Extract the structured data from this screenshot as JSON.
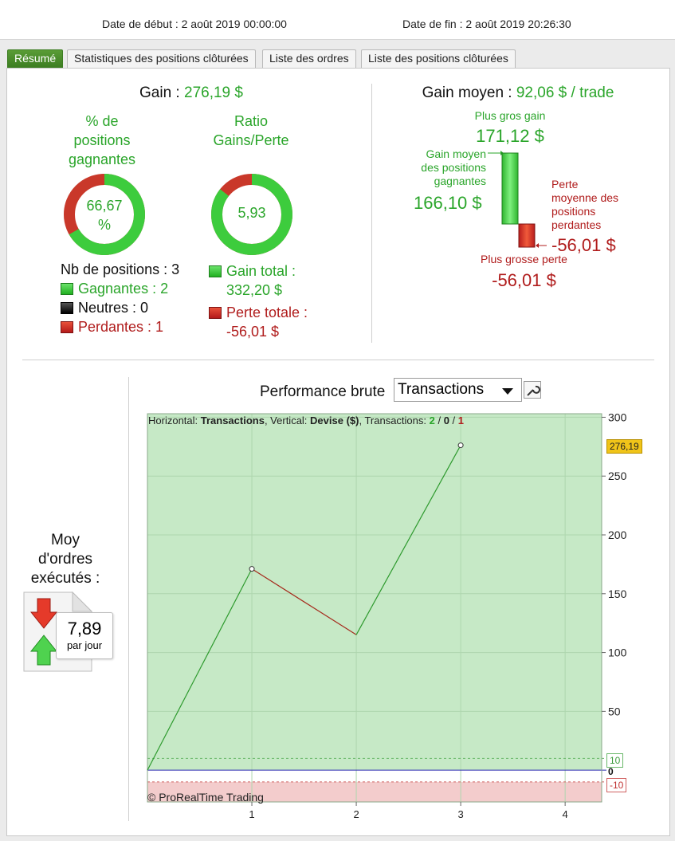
{
  "header": {
    "start_date": "Date de début : 2 août 2019 00:00:00",
    "end_date": "Date de fin : 2 août 2019 20:26:30"
  },
  "tabs": [
    {
      "label": "Résumé",
      "active": true
    },
    {
      "label": "Statistiques des positions clôturées"
    },
    {
      "label": "Liste des ordres"
    },
    {
      "label": "Liste des positions clôturées"
    }
  ],
  "summary": {
    "gain_label": "Gain :",
    "gain_value": "276,19 $",
    "pct_label_1": "% de",
    "pct_label_2": "positions",
    "pct_label_3": "gagnantes",
    "pct_value_1": "66,67",
    "pct_value_2": "%",
    "pct_fraction": 0.6667,
    "ratio_label_1": "Ratio",
    "ratio_label_2": "Gains/Perte",
    "ratio_value": "5,93",
    "ratio_fraction": 0.8558,
    "nb_positions": "Nb de positions : 3",
    "winners": "Gagnantes : 2",
    "neutral": "Neutres : 0",
    "losers": "Perdantes : 1",
    "gain_total_1": "Gain total :",
    "gain_total_2": "332,20 $",
    "perte_totale_1": "Perte totale :",
    "perte_totale_2": "-56,01 $"
  },
  "average": {
    "label": "Gain moyen :",
    "value": "92,06 $ / trade",
    "biggest_gain_label": "Plus gros gain",
    "biggest_gain_value": "171,12 $",
    "avg_win_1": "Gain moyen",
    "avg_win_2": "des positions",
    "avg_win_3": "gagnantes",
    "avg_win_value": "166,10 $",
    "avg_loss_1": "Perte",
    "avg_loss_2": "moyenne des",
    "avg_loss_3": "positions",
    "avg_loss_4": "perdantes",
    "avg_loss_value": "-56,01 $",
    "biggest_loss_label": "Plus grosse perte",
    "biggest_loss_value": "-56,01 $"
  },
  "orders": {
    "label_1": "Moy",
    "label_2": "d'ordres",
    "label_3": "exécutés :",
    "value": "7,89",
    "unit": "par jour"
  },
  "performance": {
    "title": "Performance brute",
    "select_value": "Transactions",
    "copyright": "© ProRealTime Trading",
    "info_prefix": "Horizontal: ",
    "info_h": "Transactions",
    "info_mid": ", Vertical: ",
    "info_v": "Devise ($)",
    "info_tx": ", Transactions: ",
    "info_win": "2",
    "info_sep1": " / ",
    "info_neutral": "0",
    "info_sep2": " / ",
    "info_loss": "1",
    "current_value": "276,19",
    "band_hi_label": "10",
    "zero_label": "0",
    "band_lo_label": "-10"
  },
  "chart_data": {
    "type": "line",
    "x": [
      0,
      1,
      2,
      3
    ],
    "y": [
      0,
      171.12,
      115.11,
      276.19
    ],
    "xlim": [
      0,
      4.35
    ],
    "ylim": [
      -27,
      303
    ],
    "yticks": [
      50,
      100,
      150,
      200,
      250,
      300
    ],
    "xticks": [
      1,
      2,
      3,
      4
    ],
    "colors": {
      "up": "#2e9a2e",
      "down": "#a52a1c",
      "bg_pos": "#c6e9c6",
      "bg_neg": "#f3cccc",
      "zero": "#2b2bb0",
      "badge": "#f0c419"
    }
  }
}
